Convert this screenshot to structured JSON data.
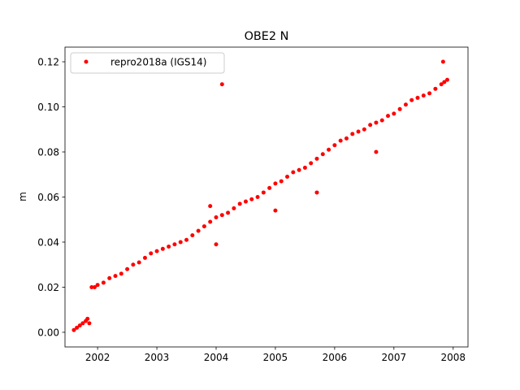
{
  "chart_data": {
    "type": "scatter",
    "title": "OBE2 N",
    "xlabel": "",
    "ylabel": "m",
    "xlim": [
      2001.45,
      2008.25
    ],
    "ylim": [
      -0.0065,
      0.1265
    ],
    "xticks": [
      2002,
      2003,
      2004,
      2005,
      2006,
      2007,
      2008
    ],
    "xtick_labels": [
      "2002",
      "2003",
      "2004",
      "2005",
      "2006",
      "2007",
      "2008"
    ],
    "yticks": [
      0.0,
      0.02,
      0.04,
      0.06,
      0.08,
      0.1,
      0.12
    ],
    "ytick_labels": [
      "0.00",
      "0.02",
      "0.04",
      "0.06",
      "0.08",
      "0.10",
      "0.12"
    ],
    "grid": false,
    "legend_position": "upper-left",
    "series": [
      {
        "name": "repro2018a (IGS14)",
        "color": "#ff0000",
        "marker": "circle",
        "x": [
          2001.6,
          2001.65,
          2001.7,
          2001.75,
          2001.8,
          2001.83,
          2001.86,
          2001.9,
          2001.95,
          2002.0,
          2002.1,
          2002.2,
          2002.3,
          2002.4,
          2002.5,
          2002.6,
          2002.7,
          2002.8,
          2002.9,
          2003.0,
          2003.1,
          2003.2,
          2003.3,
          2003.4,
          2003.5,
          2003.6,
          2003.7,
          2003.8,
          2003.9,
          2004.0,
          2004.1,
          2004.2,
          2004.3,
          2004.4,
          2004.5,
          2004.6,
          2004.7,
          2004.8,
          2004.9,
          2005.0,
          2005.1,
          2005.2,
          2005.3,
          2005.4,
          2005.5,
          2005.6,
          2005.7,
          2005.8,
          2005.9,
          2006.0,
          2006.1,
          2006.2,
          2006.3,
          2006.4,
          2006.5,
          2006.6,
          2006.7,
          2006.8,
          2006.9,
          2007.0,
          2007.1,
          2007.2,
          2007.3,
          2007.4,
          2007.5,
          2007.6,
          2007.7,
          2007.8,
          2007.85,
          2007.9,
          2004.1,
          2007.83,
          2006.7,
          2005.0,
          2004.0,
          2003.9,
          2005.7
        ],
        "y": [
          0.001,
          0.002,
          0.003,
          0.004,
          0.005,
          0.006,
          0.004,
          0.02,
          0.02,
          0.021,
          0.022,
          0.024,
          0.025,
          0.026,
          0.028,
          0.03,
          0.031,
          0.033,
          0.035,
          0.036,
          0.037,
          0.038,
          0.039,
          0.04,
          0.041,
          0.043,
          0.045,
          0.047,
          0.049,
          0.051,
          0.052,
          0.053,
          0.055,
          0.057,
          0.058,
          0.059,
          0.06,
          0.062,
          0.064,
          0.066,
          0.067,
          0.069,
          0.071,
          0.072,
          0.073,
          0.075,
          0.077,
          0.079,
          0.081,
          0.083,
          0.085,
          0.086,
          0.088,
          0.089,
          0.09,
          0.092,
          0.093,
          0.094,
          0.096,
          0.097,
          0.099,
          0.101,
          0.103,
          0.104,
          0.105,
          0.106,
          0.108,
          0.11,
          0.111,
          0.112,
          0.11,
          0.12,
          0.08,
          0.054,
          0.039,
          0.056,
          0.062
        ]
      }
    ]
  }
}
